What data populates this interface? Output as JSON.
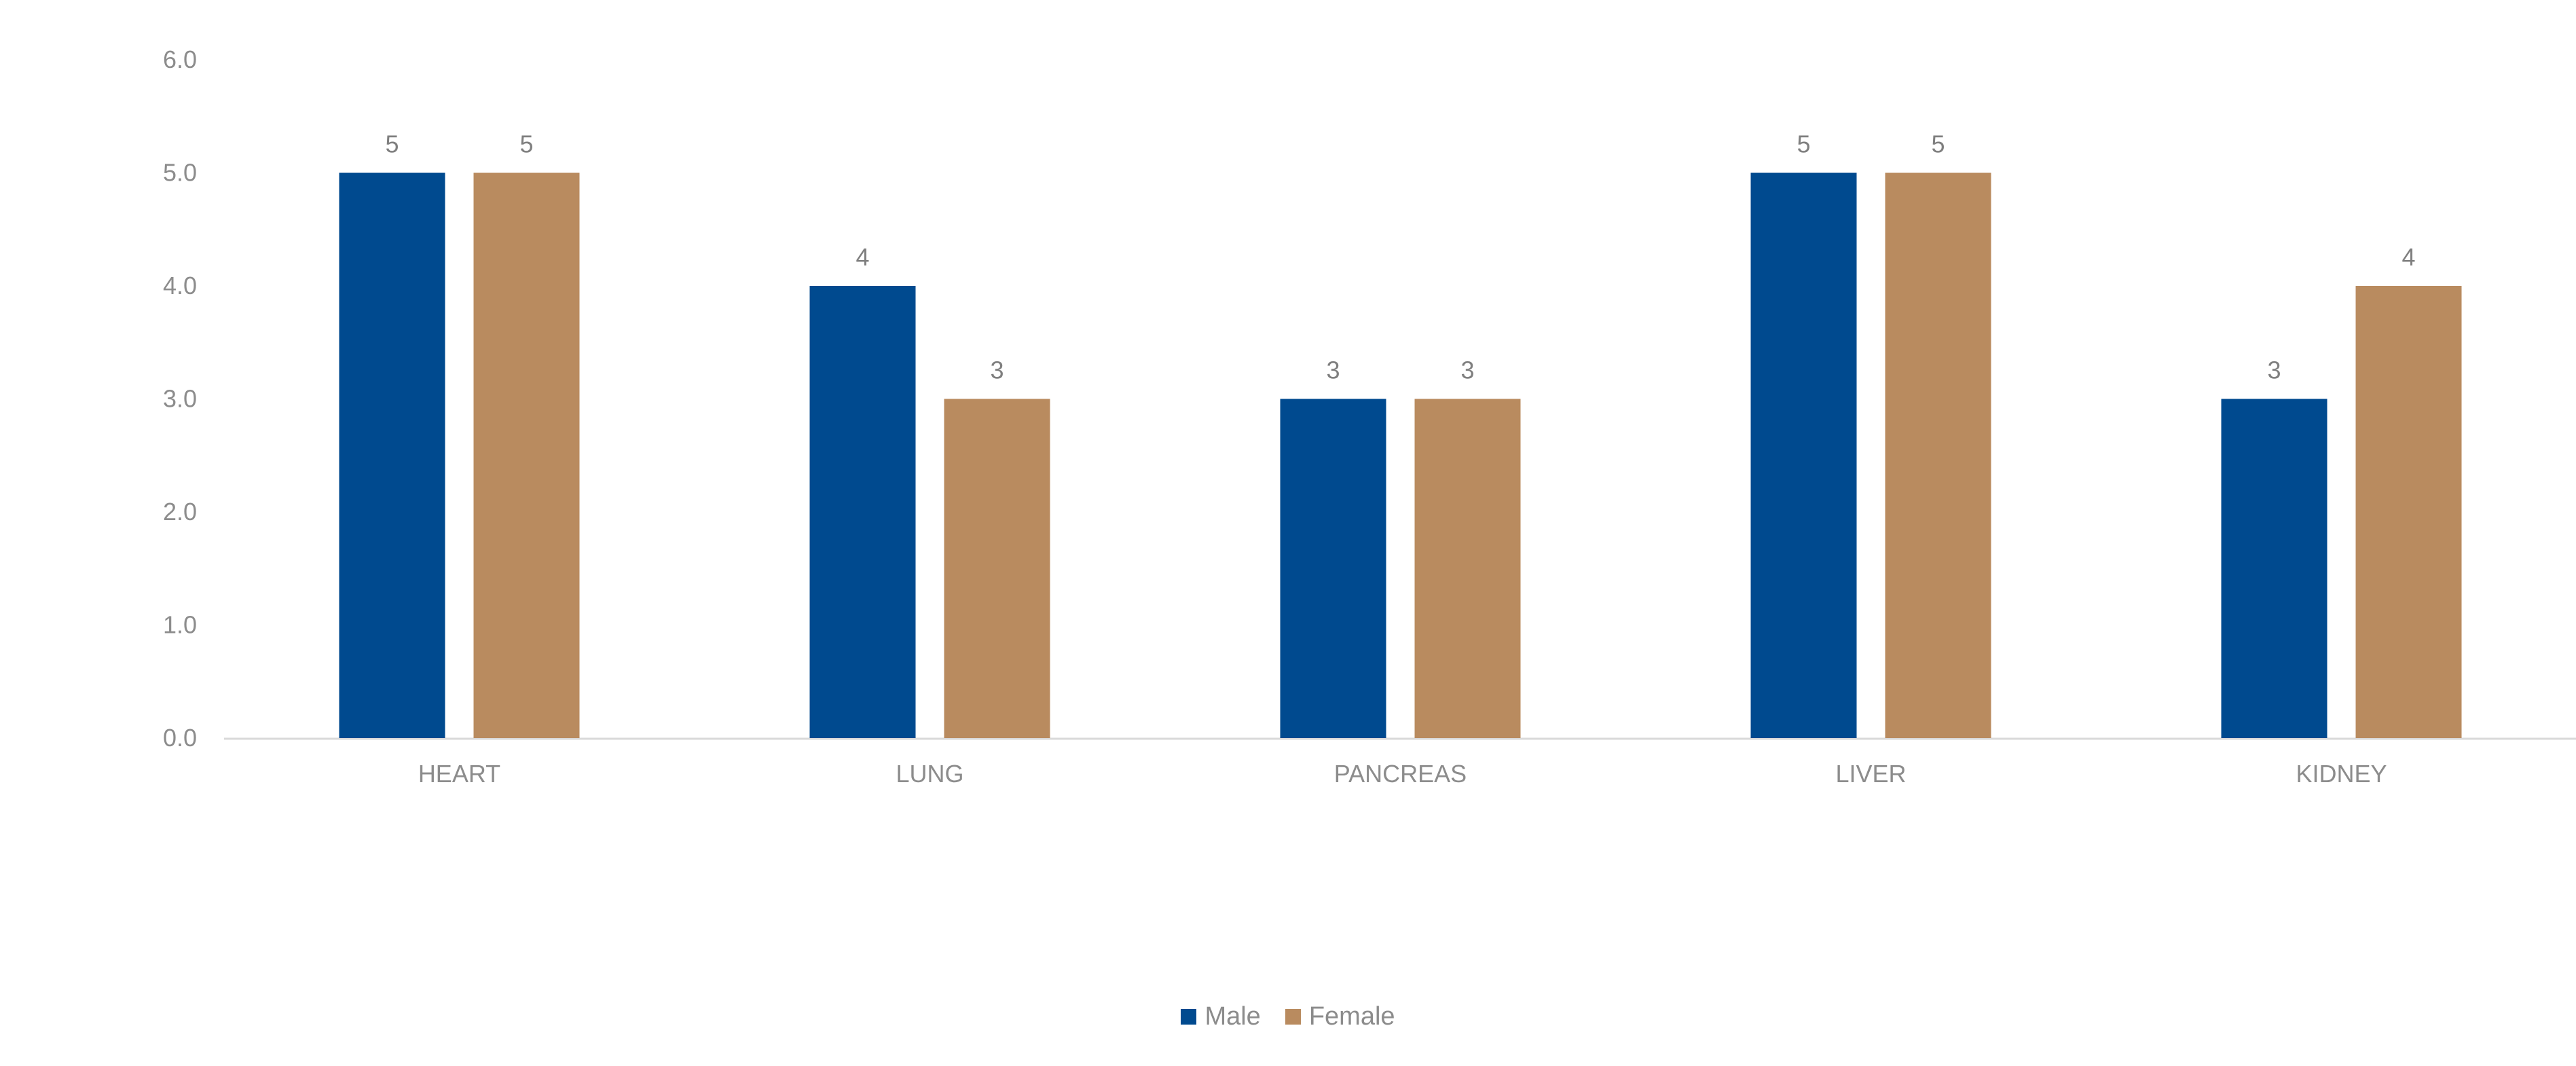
{
  "colors": {
    "male": "#004a8f",
    "female": "#b98b5f",
    "axis_text": "#8c8c8c",
    "axis_line": "#d9d9d9"
  },
  "chart_data": {
    "type": "bar",
    "categories": [
      "HEART",
      "LUNG",
      "PANCREAS",
      "LIVER",
      "KIDNEY"
    ],
    "series": [
      {
        "name": "Male",
        "values": [
          5,
          4,
          3,
          5,
          3
        ],
        "color": "#004a8f"
      },
      {
        "name": "Female",
        "values": [
          5,
          3,
          3,
          5,
          4
        ],
        "color": "#b98b5f"
      }
    ],
    "yticks": [
      "0.0",
      "1.0",
      "2.0",
      "3.0",
      "4.0",
      "5.0",
      "6.0"
    ],
    "ylim": [
      0,
      6
    ],
    "title": "",
    "xlabel": "",
    "ylabel": "",
    "grid": false,
    "data_labels": true,
    "legend_position": "bottom"
  },
  "legend": {
    "items": [
      {
        "label": "Male",
        "color": "#004a8f"
      },
      {
        "label": "Female",
        "color": "#b98b5f"
      }
    ]
  }
}
